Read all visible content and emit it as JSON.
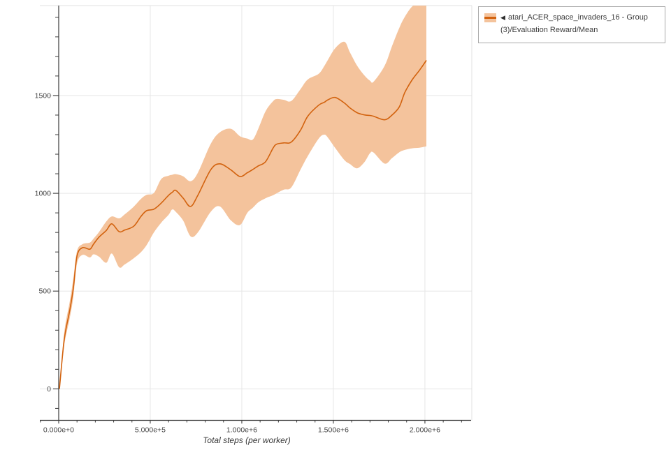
{
  "legend": {
    "marker": "◀",
    "label": "atari_ACER_space_invaders_16 - Group(3)/Evaluation Reward/Mean",
    "band_color": "#f4c39c",
    "line_color": "#d2620e"
  },
  "chart_data": {
    "type": "line",
    "title": "",
    "xlabel": "Total steps (per worker)",
    "ylabel": "",
    "legend_position": "top-right",
    "grid": true,
    "xlim": [
      -103000,
      2256000
    ],
    "ylim": [
      -161,
      1960
    ],
    "x_tick_values": [
      0,
      500000,
      1000000,
      1500000,
      2000000
    ],
    "x_tick_labels": [
      "0.000e+0",
      "5.000e+5",
      "1.000e+6",
      "1.500e+6",
      "2.000e+6"
    ],
    "x_minor_step": 100000,
    "y_tick_values": [
      0,
      500,
      1000,
      1500
    ],
    "y_tick_labels": [
      "0",
      "500",
      "1000",
      "1500"
    ],
    "y_minor_step": 100,
    "line_color": "#d2620e",
    "band_color": "#f4c39c",
    "grid_color": "#e6e6e6",
    "spine_color": "#3c3c3c",
    "tick_label_color": "#474747",
    "series": [
      {
        "name": "atari_ACER_space_invaders_16 - Group(3)/Evaluation Reward/Mean",
        "x": [
          4000,
          30000,
          60000,
          80000,
          100000,
          130000,
          170000,
          190000,
          220000,
          260000,
          290000,
          330000,
          360000,
          410000,
          450000,
          480000,
          520000,
          560000,
          600000,
          620000,
          640000,
          680000,
          720000,
          760000,
          830000,
          880000,
          940000,
          990000,
          1030000,
          1060000,
          1090000,
          1130000,
          1170000,
          1190000,
          1230000,
          1270000,
          1320000,
          1360000,
          1420000,
          1450000,
          1470000,
          1510000,
          1560000,
          1590000,
          1630000,
          1670000,
          1700000,
          1720000,
          1780000,
          1820000,
          1860000,
          1890000,
          1930000,
          1970000,
          2008000
        ],
        "mean": [
          0,
          250,
          400,
          515,
          680,
          722,
          714,
          740,
          776,
          810,
          844,
          804,
          812,
          832,
          883,
          911,
          919,
          950,
          990,
          1005,
          1015,
          975,
          933,
          990,
          1120,
          1151,
          1120,
          1086,
          1105,
          1122,
          1140,
          1162,
          1230,
          1251,
          1258,
          1262,
          1322,
          1394,
          1451,
          1465,
          1478,
          1490,
          1462,
          1437,
          1412,
          1401,
          1398,
          1394,
          1376,
          1400,
          1442,
          1515,
          1580,
          1629,
          1680
        ],
        "band_high": [
          5,
          285,
          445,
          565,
          705,
          740,
          748,
          768,
          802,
          856,
          882,
          872,
          892,
          932,
          972,
          992,
          1002,
          1073,
          1090,
          1095,
          1098,
          1087,
          1062,
          1105,
          1252,
          1312,
          1330,
          1292,
          1280,
          1275,
          1330,
          1420,
          1470,
          1482,
          1478,
          1472,
          1532,
          1582,
          1611,
          1650,
          1682,
          1742,
          1775,
          1722,
          1652,
          1602,
          1576,
          1571,
          1652,
          1752,
          1846,
          1902,
          1955,
          1972,
          1978
        ],
        "band_low": [
          -5,
          220,
          360,
          470,
          640,
          685,
          672,
          688,
          676,
          645,
          692,
          622,
          636,
          668,
          700,
          735,
          800,
          850,
          890,
          917,
          905,
          860,
          780,
          800,
          905,
          933,
          862,
          838,
          900,
          926,
          954,
          975,
          990,
          1000,
          1019,
          1030,
          1120,
          1190,
          1280,
          1300,
          1285,
          1232,
          1170,
          1150,
          1128,
          1160,
          1205,
          1208,
          1152,
          1180,
          1210,
          1222,
          1230,
          1233,
          1240
        ]
      }
    ]
  }
}
